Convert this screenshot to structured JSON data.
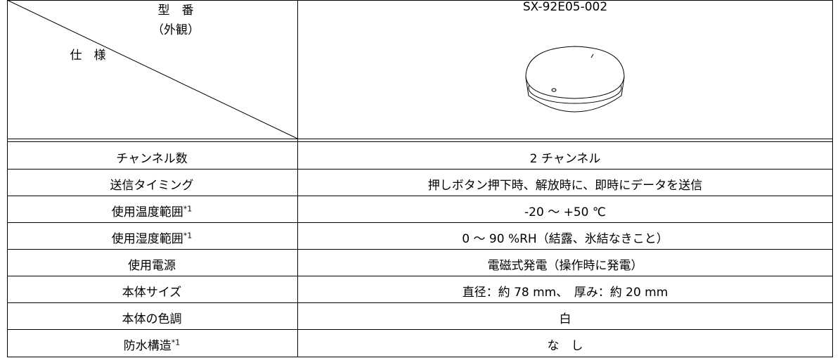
{
  "header": {
    "model_label": "型　番",
    "appearance_label": "（外観）",
    "spec_label": "仕　様",
    "model": "SX-92E05-002"
  },
  "table": {
    "rows": [
      {
        "spec": "チャンネル数",
        "value": "2 チャンネル"
      },
      {
        "spec": "送信タイミング",
        "value": "押しボタン押下時、解放時に、即時にデータを送信"
      },
      {
        "spec": "使用温度範囲",
        "note": "*1",
        "value": "-20 ～ +50 ℃"
      },
      {
        "spec": "使用湿度範囲",
        "note": "*1",
        "value": "0 ～ 90 %RH（結露、氷結なきこと）"
      },
      {
        "spec": "使用電源",
        "value": "電磁式発電（操作時に発電）"
      },
      {
        "spec": "本体サイズ",
        "value": "直径：約 78 mm、　厚み：約 20 mm"
      },
      {
        "spec": "本体の色調",
        "value": "白"
      },
      {
        "spec": "防水構造",
        "note": "*1",
        "value": "な　し"
      }
    ]
  }
}
